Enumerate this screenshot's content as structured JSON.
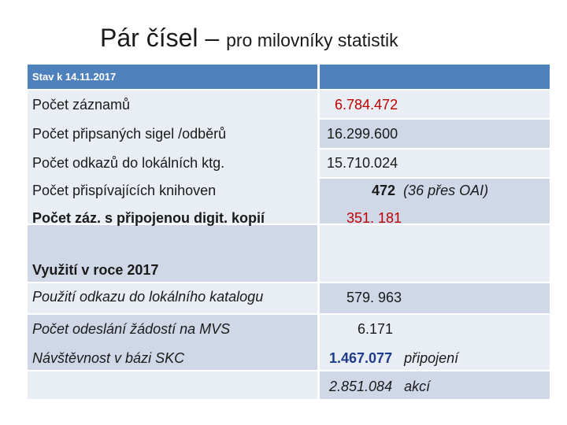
{
  "title": {
    "main": "Pár čísel – ",
    "sub": "pro milovníky statistik"
  },
  "table": {
    "header": "Stav k 14.11.2017",
    "rows": [
      {
        "label": "Počet záznamů",
        "value": "6.784.472"
      },
      {
        "label": "Počet připsaných sigel /odběrů",
        "value": "16.299.600"
      },
      {
        "label": "Počet odkazů do lokálních ktg.",
        "value": "15.710.024"
      },
      {
        "label": "Počet přispívajících knihoven",
        "value": "472",
        "note": "(36 přes OAI)"
      },
      {
        "label": "Počet záz. s připojenou digit. kopií",
        "value": "351. 181"
      }
    ],
    "usage": {
      "heading": "Využití v roce 2017",
      "rows": [
        {
          "label": "Použití odkazu do lokálního katalogu",
          "value": "579. 963"
        },
        {
          "label": "Počet odeslání žádostí na MVS",
          "value": "6.171"
        },
        {
          "label": "Návštěvnost v bázi SKC",
          "value": "1.467.077",
          "note": "připojení"
        },
        {
          "label": "",
          "value": "2.851.084",
          "note": "akcí"
        }
      ]
    }
  },
  "colors": {
    "header": "#4f81bd",
    "band_light": "#e9edf4",
    "band_dark": "#d0d8e8",
    "red": "#c00000",
    "blue": "#1f3c8a"
  }
}
